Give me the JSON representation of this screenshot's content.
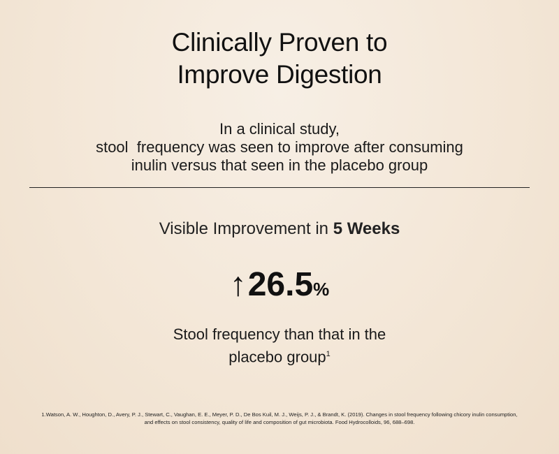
{
  "title": {
    "line1": "Clinically Proven to",
    "line2": "Improve Digestion"
  },
  "subtitle": {
    "line1": "In a clinical study,",
    "line2": "stool  frequency was seen to improve after consuming",
    "line3": "inulin versus that seen in the placebo group"
  },
  "headline": {
    "prefix": "Visible Improvement in ",
    "bold": "5 Weeks"
  },
  "stat": {
    "icon": "arrow-up-icon",
    "arrow_glyph": "↑",
    "value": "26.5",
    "unit": "%"
  },
  "description": {
    "line1": "Stool frequency than that in the",
    "line2": "placebo group",
    "footnote_marker": "1"
  },
  "citation": {
    "line1": "1.Watson, A. W., Houghton, D., Avery, P. J., Stewart, C., Vaughan, E. E., Meyer, P. D., De Bos Kuil, M. J., Weijs, P. J., & Brandt, K. (2019). Changes in stool frequency following chicory inulin consumption,",
    "line2": "and effects on stool consistency, quality of life and composition of gut microbiota. Food Hydrocolloids, 96, 688–698."
  },
  "colors": {
    "background": "#f5e9dc",
    "text": "#111111"
  }
}
